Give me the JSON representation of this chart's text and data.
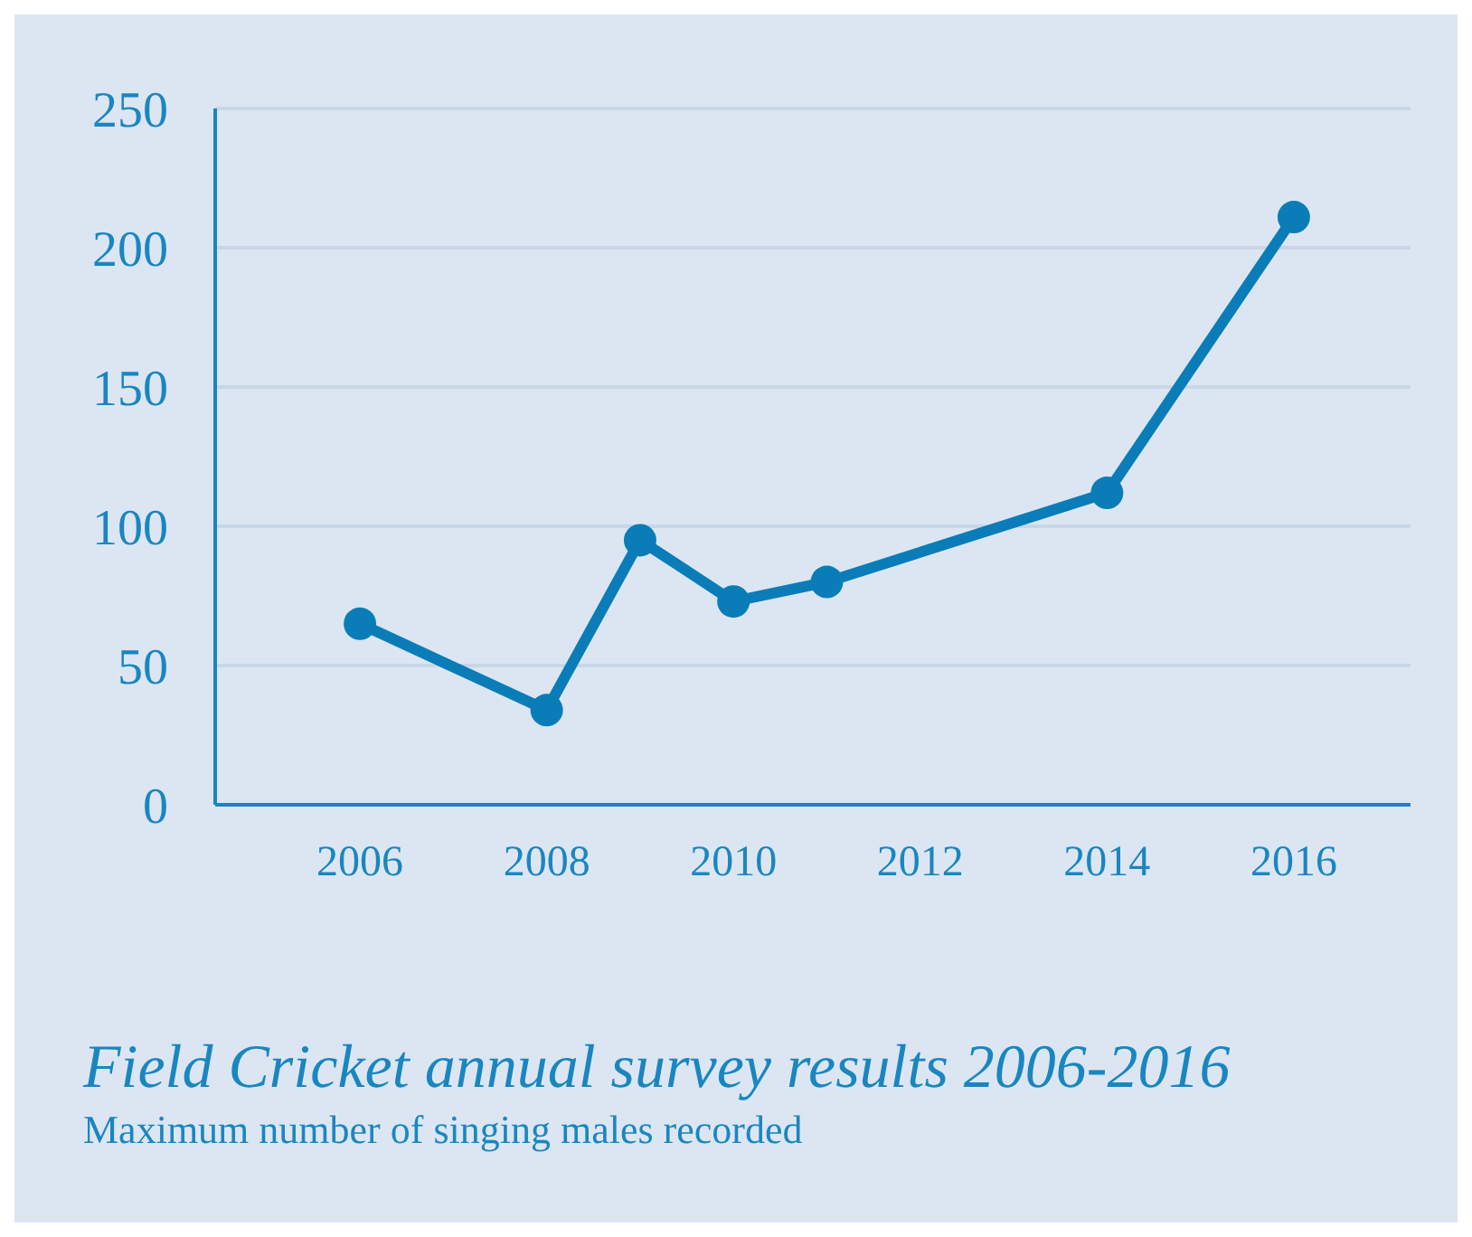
{
  "chart_data": {
    "type": "line",
    "title": "Field Cricket annual survey results 2006-2016",
    "subtitle": "Maximum number of singing males recorded",
    "x": [
      2006,
      2008,
      2009,
      2010,
      2011,
      2014,
      2016
    ],
    "series": [
      {
        "color": "#0a7db8",
        "values": [
          65,
          34,
          95,
          73,
          80,
          112,
          211
        ]
      }
    ],
    "xlim": [
      2004.45,
      2017.25
    ],
    "xticks": [
      2006,
      2008,
      2010,
      2012,
      2014,
      2016
    ],
    "ylim": [
      0,
      250
    ],
    "yticks": [
      0,
      50,
      100,
      150,
      200,
      250
    ],
    "grid": "y",
    "marker": "circle",
    "line_style": "solid"
  }
}
